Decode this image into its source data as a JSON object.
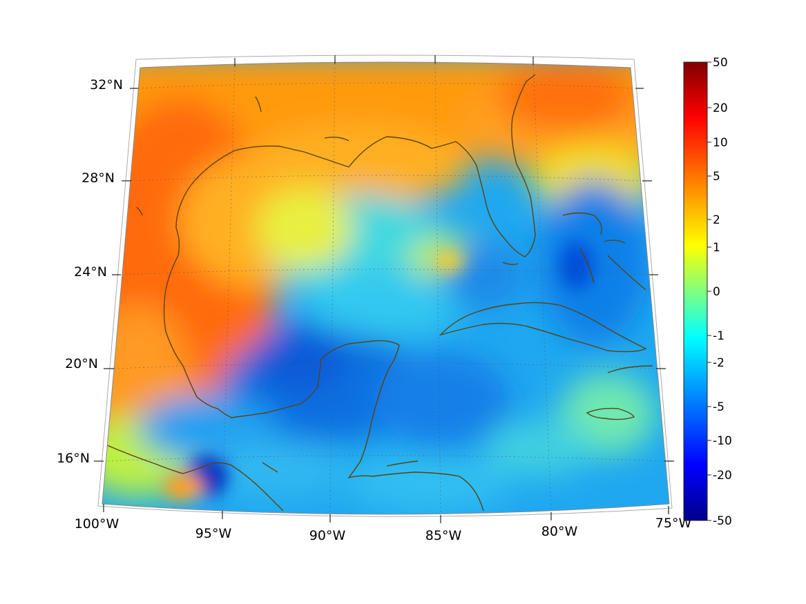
{
  "map": {
    "projection": "conic",
    "lat_labels": [
      "32°N",
      "28°N",
      "24°N",
      "20°N",
      "16°N"
    ],
    "lon_labels": [
      "100°W",
      "95°W",
      "90°W",
      "85°W",
      "80°W",
      "75°W"
    ],
    "extent": {
      "lon_min": -100,
      "lon_max": -75,
      "lat_min": 14,
      "lat_max": 33
    },
    "coastline_color": "#5c4210",
    "grid": "dotted"
  },
  "colorbar": {
    "ticks": [
      "50",
      "20",
      "10",
      "5",
      "2",
      "1",
      "0",
      "-1",
      "-2",
      "-5",
      "-10",
      "-20",
      "-50"
    ],
    "colormap": "jet",
    "stops": [
      "#8b0000",
      "#ff0000",
      "#ff7f00",
      "#ffff00",
      "#7fff7f",
      "#00ffff",
      "#007fff",
      "#0000ff",
      "#00008b"
    ]
  }
}
